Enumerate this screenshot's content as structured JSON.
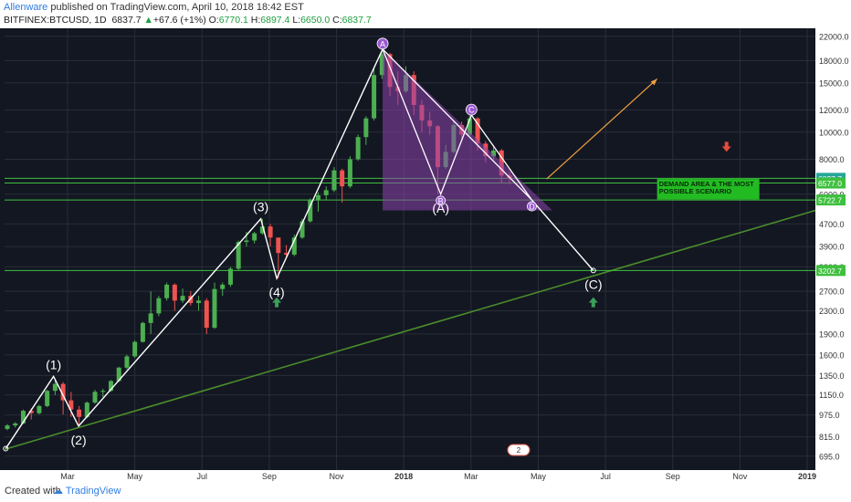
{
  "header": {
    "author": "Allenware",
    "published_text": "published on TradingView.com, April 10, 2018 18:42 EST",
    "symbol": "BITFINEX:BTCUSD, 1D",
    "last": "6837.7",
    "change": "+67.6 (+1%)",
    "open_label": "O:",
    "open": "6770.1",
    "high_label": "H:",
    "high": "6897.4",
    "low_label": "L:",
    "low": "6650.0",
    "close_label": "C:",
    "close": "6837.7",
    "change_arrow": "▲"
  },
  "footer": {
    "created_with": "Created with",
    "brand": "TradingView"
  },
  "colors": {
    "background": "#131722",
    "grid": "#2a2e39",
    "up": "#4caf50",
    "down": "#ef5350",
    "wave_line": "#ffffff",
    "trendline": "#4a8c2a",
    "level_line": "#3fbf3f",
    "triangle_fill": "#8e44ad",
    "arrow_up": "#3a9e5a",
    "arrow_down": "#e64a3a",
    "projection": "#f0a040",
    "label_purple": "#9b59d0"
  },
  "chart_data": {
    "type": "candlestick",
    "scale": "log",
    "ylim": [
      620,
      23500
    ],
    "y_ticks": [
      "22000.0",
      "18000.0",
      "15000.0",
      "12000.0",
      "10000.0",
      "8000.0",
      "6000.0",
      "4700.0",
      "3900.0",
      "3300.0",
      "2700.0",
      "2300.0",
      "1900.0",
      "1600.0",
      "1350.0",
      "1150.0",
      "975.0",
      "815.0",
      "695.0"
    ],
    "x_ticks": [
      "Mar",
      "May",
      "Jul",
      "Sep",
      "Nov",
      "2018",
      "Mar",
      "May",
      "Jul",
      "Sep",
      "Nov",
      "2019"
    ],
    "x_range": [
      "2017-01-19",
      "2019-01-01"
    ],
    "price_tags": [
      {
        "value": "6837.7",
        "price": 6838,
        "color": "#26a69a"
      },
      {
        "value": "6577.0",
        "price": 6577,
        "color": "#3fbf3f"
      },
      {
        "value": "5722.7",
        "price": 5723,
        "color": "#3fbf3f"
      },
      {
        "value": "3202.7",
        "price": 3203,
        "color": "#3fbf3f"
      }
    ],
    "horizontal_levels": [
      6837.7,
      6577.0,
      5722.7,
      3202.7
    ],
    "wave_points": [
      {
        "label": "(1)",
        "date": "2017-03-03",
        "price": 1340,
        "pos": "above"
      },
      {
        "label": "(2)",
        "date": "2017-03-25",
        "price": 890,
        "pos": "below"
      },
      {
        "label": "(3)",
        "date": "2017-09-01",
        "price": 4900,
        "pos": "above"
      },
      {
        "label": "(4)",
        "date": "2017-09-15",
        "price": 3000,
        "pos": "below"
      },
      {
        "label": "(A)",
        "date": "2018-02-06",
        "price": 6000,
        "pos": "below"
      },
      {
        "label": "(C)",
        "date": "2018-06-20",
        "price": 3202.7,
        "pos": "below"
      }
    ],
    "harmonic_points": [
      {
        "label": "A",
        "date": "2017-12-17",
        "price": 19800
      },
      {
        "label": "B",
        "date": "2018-02-06",
        "price": 6000
      },
      {
        "label": "C",
        "date": "2018-03-05",
        "price": 11500
      },
      {
        "label": "D",
        "date": "2018-04-27",
        "price": 5723
      }
    ],
    "annotation": [
      "DEMAND AREA & THE MOST",
      "POSSIBLE SCENARIO"
    ],
    "candles": [
      {
        "d": "2017-01-19",
        "o": 870,
        "h": 905,
        "l": 860,
        "c": 895
      },
      {
        "d": "2017-01-26",
        "o": 895,
        "h": 920,
        "l": 880,
        "c": 910
      },
      {
        "d": "2017-02-02",
        "o": 910,
        "h": 1020,
        "l": 905,
        "c": 1010
      },
      {
        "d": "2017-02-09",
        "o": 1010,
        "h": 1030,
        "l": 940,
        "c": 990
      },
      {
        "d": "2017-02-16",
        "o": 990,
        "h": 1060,
        "l": 980,
        "c": 1050
      },
      {
        "d": "2017-02-23",
        "o": 1050,
        "h": 1200,
        "l": 1040,
        "c": 1190
      },
      {
        "d": "2017-03-02",
        "o": 1190,
        "h": 1300,
        "l": 1150,
        "c": 1260
      },
      {
        "d": "2017-03-09",
        "o": 1260,
        "h": 1280,
        "l": 980,
        "c": 1100
      },
      {
        "d": "2017-03-16",
        "o": 1100,
        "h": 1180,
        "l": 960,
        "c": 1020
      },
      {
        "d": "2017-03-23",
        "o": 1020,
        "h": 1050,
        "l": 895,
        "c": 960
      },
      {
        "d": "2017-03-30",
        "o": 960,
        "h": 1090,
        "l": 950,
        "c": 1080
      },
      {
        "d": "2017-04-06",
        "o": 1080,
        "h": 1200,
        "l": 1070,
        "c": 1180
      },
      {
        "d": "2017-04-13",
        "o": 1180,
        "h": 1210,
        "l": 1130,
        "c": 1190
      },
      {
        "d": "2017-04-20",
        "o": 1190,
        "h": 1300,
        "l": 1180,
        "c": 1290
      },
      {
        "d": "2017-04-27",
        "o": 1290,
        "h": 1450,
        "l": 1280,
        "c": 1440
      },
      {
        "d": "2017-05-04",
        "o": 1440,
        "h": 1600,
        "l": 1420,
        "c": 1580
      },
      {
        "d": "2017-05-11",
        "o": 1580,
        "h": 1800,
        "l": 1560,
        "c": 1780
      },
      {
        "d": "2017-05-18",
        "o": 1780,
        "h": 2100,
        "l": 1770,
        "c": 2080
      },
      {
        "d": "2017-05-25",
        "o": 2080,
        "h": 2700,
        "l": 1900,
        "c": 2250
      },
      {
        "d": "2017-06-01",
        "o": 2250,
        "h": 2600,
        "l": 2200,
        "c": 2550
      },
      {
        "d": "2017-06-08",
        "o": 2550,
        "h": 2900,
        "l": 2500,
        "c": 2850
      },
      {
        "d": "2017-06-15",
        "o": 2850,
        "h": 2880,
        "l": 2300,
        "c": 2500
      },
      {
        "d": "2017-06-22",
        "o": 2500,
        "h": 2760,
        "l": 2450,
        "c": 2600
      },
      {
        "d": "2017-06-29",
        "o": 2600,
        "h": 2700,
        "l": 2400,
        "c": 2450
      },
      {
        "d": "2017-07-06",
        "o": 2450,
        "h": 2600,
        "l": 2300,
        "c": 2500
      },
      {
        "d": "2017-07-13",
        "o": 2500,
        "h": 2550,
        "l": 1900,
        "c": 2000
      },
      {
        "d": "2017-07-20",
        "o": 2000,
        "h": 2900,
        "l": 1980,
        "c": 2750
      },
      {
        "d": "2017-07-27",
        "o": 2750,
        "h": 2900,
        "l": 2600,
        "c": 2850
      },
      {
        "d": "2017-08-03",
        "o": 2850,
        "h": 3300,
        "l": 2800,
        "c": 3250
      },
      {
        "d": "2017-08-10",
        "o": 3250,
        "h": 4100,
        "l": 3200,
        "c": 4050
      },
      {
        "d": "2017-08-17",
        "o": 4050,
        "h": 4400,
        "l": 3900,
        "c": 4100
      },
      {
        "d": "2017-08-24",
        "o": 4100,
        "h": 4400,
        "l": 4000,
        "c": 4350
      },
      {
        "d": "2017-08-31",
        "o": 4350,
        "h": 4900,
        "l": 4300,
        "c": 4600
      },
      {
        "d": "2017-09-07",
        "o": 4600,
        "h": 4700,
        "l": 3900,
        "c": 4200
      },
      {
        "d": "2017-09-14",
        "o": 4200,
        "h": 4200,
        "l": 3000,
        "c": 3700
      },
      {
        "d": "2017-09-21",
        "o": 3700,
        "h": 3950,
        "l": 3550,
        "c": 3650
      },
      {
        "d": "2017-09-28",
        "o": 3650,
        "h": 4300,
        "l": 3600,
        "c": 4200
      },
      {
        "d": "2017-10-05",
        "o": 4200,
        "h": 4900,
        "l": 4150,
        "c": 4800
      },
      {
        "d": "2017-10-12",
        "o": 4800,
        "h": 5800,
        "l": 4750,
        "c": 5700
      },
      {
        "d": "2017-10-19",
        "o": 5700,
        "h": 6100,
        "l": 5200,
        "c": 5950
      },
      {
        "d": "2017-10-26",
        "o": 5950,
        "h": 6400,
        "l": 5700,
        "c": 6200
      },
      {
        "d": "2017-11-02",
        "o": 6200,
        "h": 7500,
        "l": 6100,
        "c": 7300
      },
      {
        "d": "2017-11-09",
        "o": 7300,
        "h": 7400,
        "l": 5600,
        "c": 6400
      },
      {
        "d": "2017-11-16",
        "o": 6400,
        "h": 8200,
        "l": 6300,
        "c": 8000
      },
      {
        "d": "2017-11-23",
        "o": 8000,
        "h": 9800,
        "l": 7900,
        "c": 9600
      },
      {
        "d": "2017-11-30",
        "o": 9600,
        "h": 11400,
        "l": 9000,
        "c": 11200
      },
      {
        "d": "2017-12-07",
        "o": 11200,
        "h": 17000,
        "l": 11000,
        "c": 16000
      },
      {
        "d": "2017-12-14",
        "o": 16000,
        "h": 19800,
        "l": 15500,
        "c": 19000
      },
      {
        "d": "2017-12-21",
        "o": 19000,
        "h": 19200,
        "l": 13500,
        "c": 14500
      },
      {
        "d": "2017-12-28",
        "o": 14500,
        "h": 16500,
        "l": 12500,
        "c": 14000
      },
      {
        "d": "2018-01-04",
        "o": 14000,
        "h": 17200,
        "l": 13800,
        "c": 16000
      },
      {
        "d": "2018-01-11",
        "o": 16000,
        "h": 16500,
        "l": 11500,
        "c": 12500
      },
      {
        "d": "2018-01-18",
        "o": 12500,
        "h": 13000,
        "l": 10000,
        "c": 11000
      },
      {
        "d": "2018-01-25",
        "o": 11000,
        "h": 11800,
        "l": 9800,
        "c": 10500
      },
      {
        "d": "2018-02-01",
        "o": 10500,
        "h": 10600,
        "l": 6000,
        "c": 7500
      },
      {
        "d": "2018-02-08",
        "o": 7500,
        "h": 9000,
        "l": 7400,
        "c": 8500
      },
      {
        "d": "2018-02-15",
        "o": 8500,
        "h": 11000,
        "l": 8400,
        "c": 10600
      },
      {
        "d": "2018-02-22",
        "o": 10600,
        "h": 10900,
        "l": 9500,
        "c": 9800
      },
      {
        "d": "2018-03-01",
        "o": 9800,
        "h": 11500,
        "l": 9700,
        "c": 11200
      },
      {
        "d": "2018-03-08",
        "o": 11200,
        "h": 11300,
        "l": 8600,
        "c": 9100
      },
      {
        "d": "2018-03-15",
        "o": 9100,
        "h": 9300,
        "l": 7800,
        "c": 8200
      },
      {
        "d": "2018-03-22",
        "o": 8200,
        "h": 9000,
        "l": 8000,
        "c": 8600
      },
      {
        "d": "2018-03-29",
        "o": 8600,
        "h": 8700,
        "l": 6600,
        "c": 7000
      },
      {
        "d": "2018-04-05",
        "o": 7000,
        "h": 7200,
        "l": 6500,
        "c": 6838
      }
    ]
  }
}
